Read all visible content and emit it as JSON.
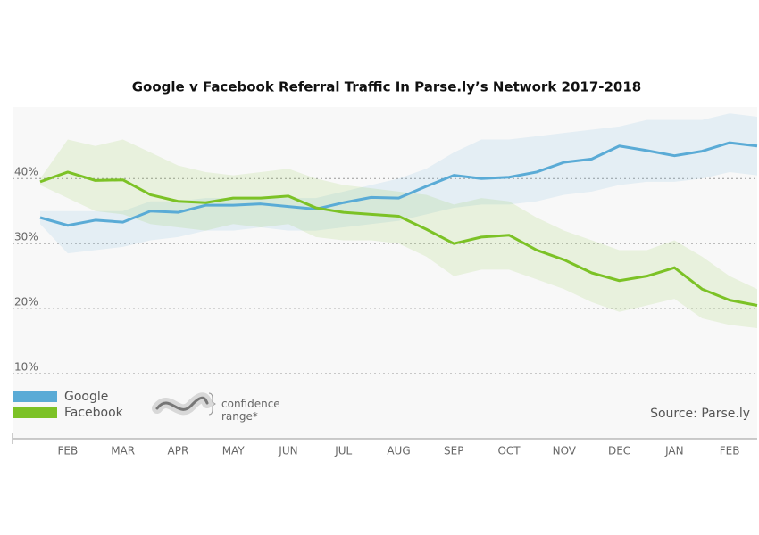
{
  "chart_data": {
    "type": "line",
    "title": "Google v Facebook Referral Traffic In Parse.ly’s Network 2017-2018",
    "categories": [
      null,
      "FEB",
      null,
      "MAR",
      null,
      "APR",
      null,
      "MAY",
      null,
      "JUN",
      null,
      "JUL",
      null,
      "AUG",
      null,
      "SEP",
      null,
      "OCT",
      null,
      "NOV",
      null,
      "DEC",
      null,
      "JAN",
      null,
      "FEB",
      null
    ],
    "series": [
      {
        "name": "Google",
        "color": "#5aabd6",
        "values": [
          34,
          32.8,
          33.6,
          33.3,
          35,
          34.8,
          35.9,
          35.9,
          36.1,
          35.7,
          35.3,
          36.3,
          37.1,
          37,
          38.8,
          40.5,
          40,
          40.2,
          41,
          42.5,
          43,
          45,
          44.3,
          43.5,
          44.2,
          45.5,
          45
        ],
        "high": [
          35,
          35,
          35,
          35,
          36.5,
          36.5,
          37,
          37,
          37,
          37,
          37,
          38,
          39,
          40,
          41.5,
          44,
          46,
          46,
          46.5,
          47,
          47.5,
          48,
          49,
          49,
          49,
          50,
          49.5
        ],
        "low": [
          33,
          28.5,
          29,
          29.5,
          30.5,
          31,
          32,
          32,
          32.5,
          32,
          32,
          32.5,
          33,
          33.5,
          34.5,
          35.5,
          36,
          36,
          36.5,
          37.5,
          38,
          39,
          39.5,
          39.5,
          40,
          41,
          40.5
        ]
      },
      {
        "name": "Facebook",
        "color": "#7cc226",
        "values": [
          39.5,
          41,
          39.7,
          39.8,
          37.5,
          36.5,
          36.3,
          37,
          37,
          37.3,
          35.5,
          34.8,
          34.5,
          34.2,
          32.2,
          30,
          31,
          31.3,
          29,
          27.5,
          25.5,
          24.3,
          25,
          26.3,
          23,
          21.3,
          20.5
        ],
        "high": [
          40,
          46,
          45,
          46,
          44,
          42,
          41,
          40.5,
          41,
          41.5,
          40,
          39,
          38.5,
          38,
          37.5,
          36,
          37,
          36.5,
          34,
          32,
          30.5,
          29,
          29,
          30.5,
          28,
          25,
          23
        ],
        "low": [
          39,
          37,
          35,
          34.5,
          33,
          32.5,
          32,
          33,
          32.5,
          33,
          31,
          30.5,
          30.5,
          30,
          28,
          25,
          26,
          26,
          24.5,
          23,
          21,
          19.5,
          20.5,
          21.5,
          18.5,
          17.5,
          17
        ]
      }
    ],
    "ylim": [
      0,
      51
    ],
    "yticks": [
      {
        "value": 10,
        "label": "10%"
      },
      {
        "value": 20,
        "label": "20%"
      },
      {
        "value": 30,
        "label": "30%"
      },
      {
        "value": 40,
        "label": "40%"
      }
    ],
    "grid": true,
    "legend": "lower left",
    "band_label": "confidence range*",
    "source": "Source: Parse.ly"
  }
}
